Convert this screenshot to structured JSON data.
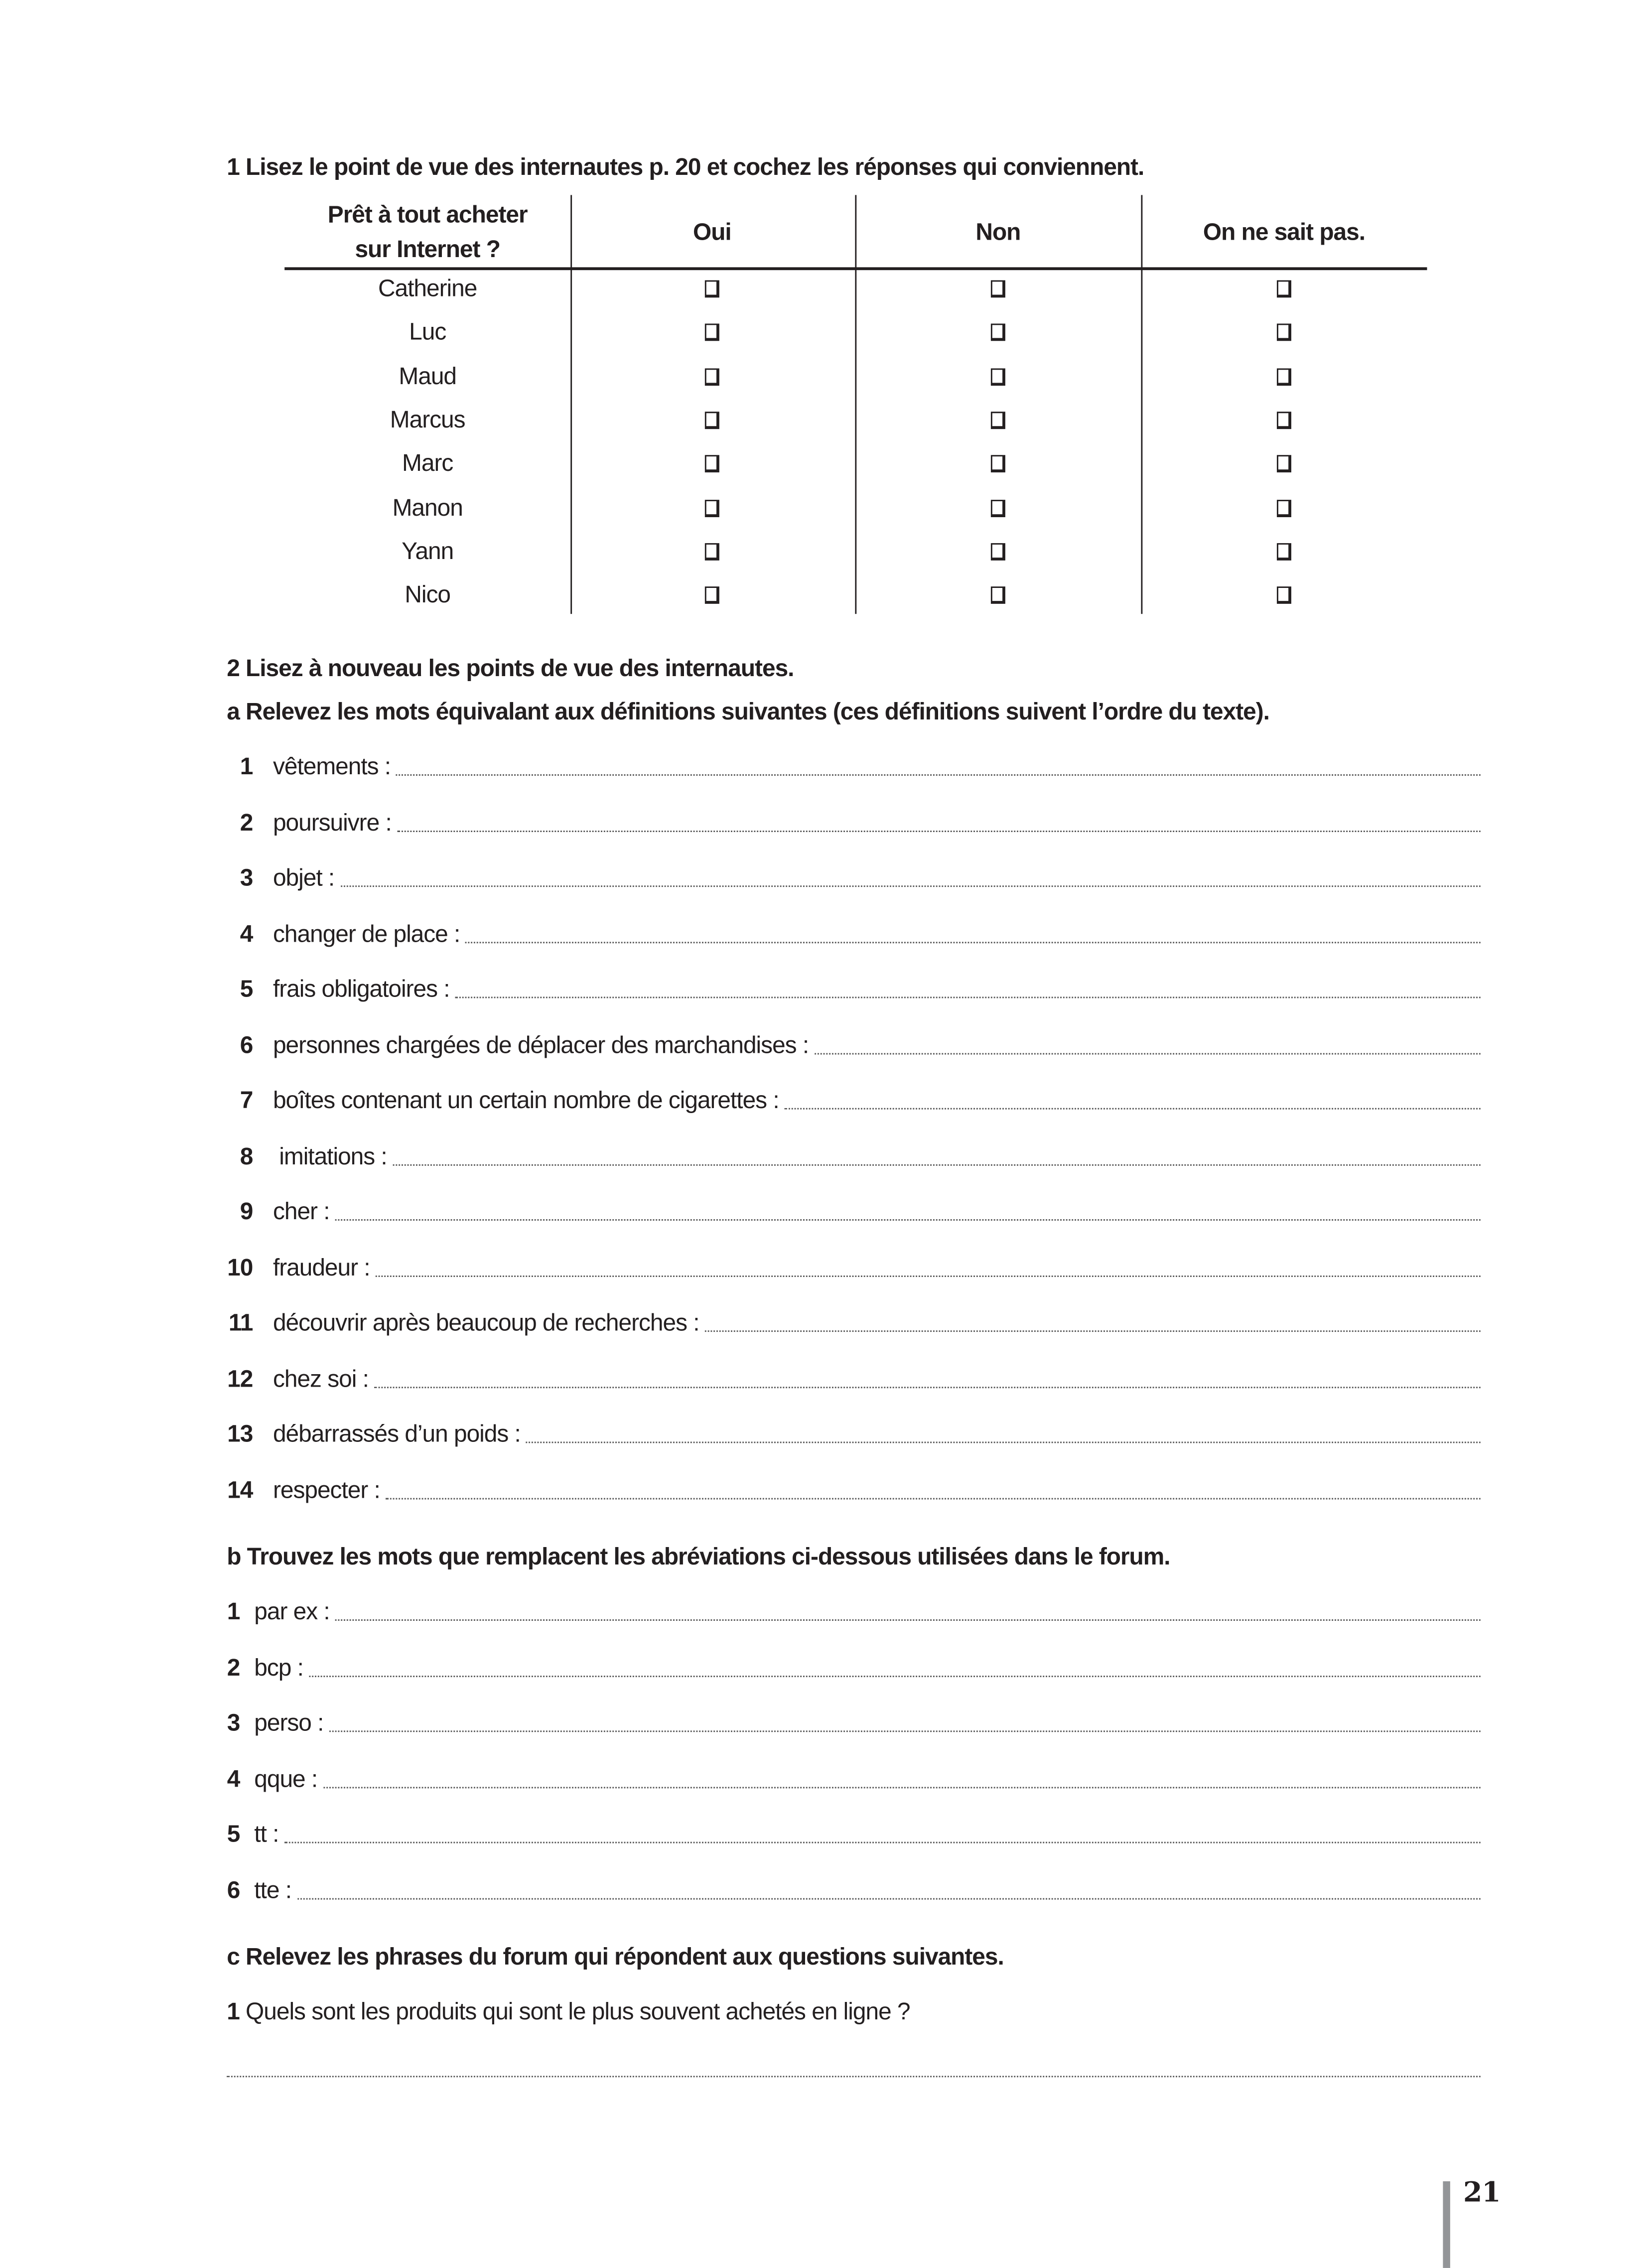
{
  "exercise1": {
    "title": "1 Lisez le point de vue des internautes p. 20 et cochez les réponses qui conviennent.",
    "headers": [
      "Prêt à tout acheter",
      "sur Internet ?",
      "Oui",
      "Non",
      "On ne sait pas."
    ],
    "names": [
      "Catherine",
      "Luc",
      "Maud",
      "Marcus",
      "Marc",
      "Manon",
      "Yann",
      "Nico"
    ]
  },
  "exercise2": {
    "title": "2 Lisez à nouveau les points de vue des internautes.",
    "a": {
      "title": "a Relevez les mots équivalant aux définitions suivantes (ces définitions suivent l’ordre du texte).",
      "items": [
        {
          "n": "1",
          "label": "vêtements :"
        },
        {
          "n": "2",
          "label": "poursuivre :"
        },
        {
          "n": "3",
          "label": "objet :"
        },
        {
          "n": "4",
          "label": "changer de place :"
        },
        {
          "n": "5",
          "label": "frais obligatoires :"
        },
        {
          "n": "6",
          "label": "personnes chargées de déplacer des marchandises :"
        },
        {
          "n": "7",
          "label": "boîtes contenant un certain nombre de cigarettes :"
        },
        {
          "n": "8",
          "label": " imitations :"
        },
        {
          "n": "9",
          "label": "cher :"
        },
        {
          "n": "10",
          "label": "fraudeur :"
        },
        {
          "n": "11",
          "label": "découvrir après beaucoup de recherches :"
        },
        {
          "n": "12",
          "label": "chez soi :"
        },
        {
          "n": "13",
          "label": "débarrassés d’un poids :"
        },
        {
          "n": "14",
          "label": "respecter :"
        }
      ]
    },
    "b": {
      "title": "b Trouvez les mots que remplacent les abréviations ci-dessous utilisées dans le forum.",
      "items": [
        {
          "n": "1",
          "label": "par ex :"
        },
        {
          "n": "2",
          "label": "bcp :"
        },
        {
          "n": "3",
          "label": "perso :"
        },
        {
          "n": "4",
          "label": "qque :"
        },
        {
          "n": "5",
          "label": "tt :"
        },
        {
          "n": "6",
          "label": "tte :"
        }
      ]
    },
    "c": {
      "title": "c Relevez les phrases du forum qui répondent aux questions suivantes.",
      "q1_num": "1",
      "q1": "Quels sont les produits qui sont le plus souvent achetés en ligne ?"
    }
  },
  "page_number": "21"
}
